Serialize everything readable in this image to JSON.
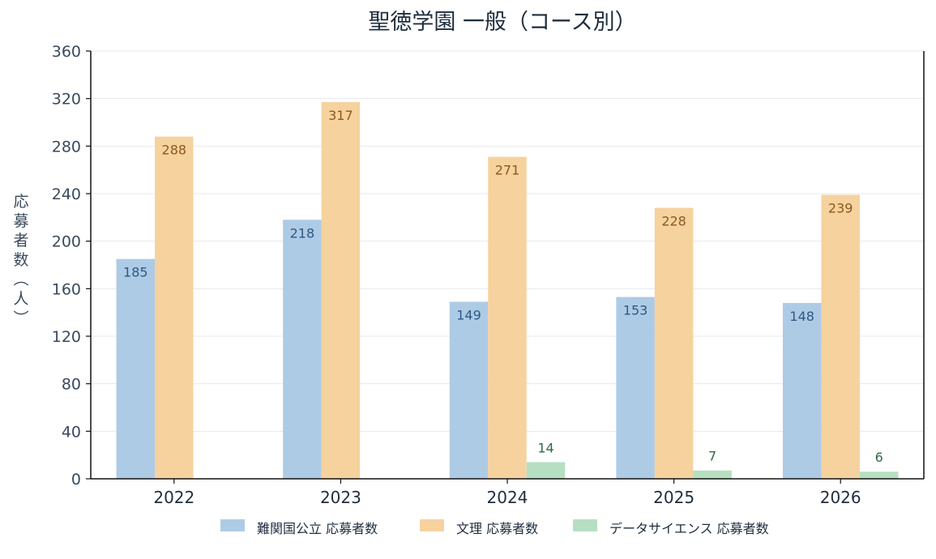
{
  "chart_data": {
    "type": "bar",
    "title": "聖徳学園 一般（コース別）",
    "xlabel": "",
    "ylabel": "応募者数（人）",
    "ylim": [
      0,
      360
    ],
    "yticks": [
      0,
      40,
      80,
      120,
      160,
      200,
      240,
      280,
      320,
      360
    ],
    "grid": true,
    "legend_position": "bottom",
    "categories": [
      "2022",
      "2023",
      "2024",
      "2025",
      "2026"
    ],
    "series": [
      {
        "name": "難関国公立 応募者数",
        "values": [
          185,
          218,
          149,
          153,
          148
        ],
        "labels": [
          "185",
          "218",
          "149",
          "153",
          "148"
        ],
        "color": "#aecbe6",
        "label_color": "#2b5a84"
      },
      {
        "name": "文理 応募者数",
        "values": [
          288,
          317,
          271,
          228,
          239
        ],
        "labels": [
          "288",
          "317",
          "271",
          "228",
          "239"
        ],
        "color": "#f6d29e",
        "label_color": "#8a5a1e"
      },
      {
        "name": "データサイエンス 応募者数",
        "values": [
          null,
          null,
          14,
          7,
          6
        ],
        "labels": [
          "",
          "",
          "14",
          "7",
          "6"
        ],
        "color": "#b6dfc2",
        "label_color": "#2e6a45"
      }
    ]
  }
}
